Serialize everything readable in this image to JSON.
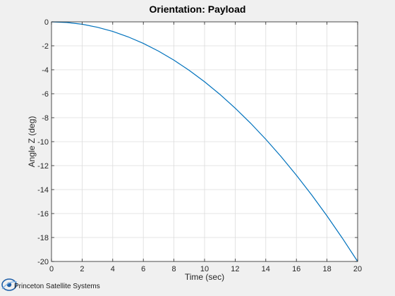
{
  "chart_data": {
    "type": "line",
    "title": "Orientation: Payload",
    "xlabel": "Time (sec)",
    "ylabel": "Angle Z (deg)",
    "xlim": [
      0,
      20
    ],
    "ylim": [
      -20,
      0
    ],
    "xticks": [
      0,
      2,
      4,
      6,
      8,
      10,
      12,
      14,
      16,
      18,
      20
    ],
    "yticks": [
      0,
      -2,
      -4,
      -6,
      -8,
      -10,
      -12,
      -14,
      -16,
      -18,
      -20
    ],
    "grid": true,
    "series": [
      {
        "color": "#0072bd",
        "x": [
          0,
          1,
          2,
          3,
          4,
          5,
          6,
          7,
          8,
          9,
          10,
          11,
          12,
          13,
          14,
          15,
          16,
          17,
          18,
          19,
          20
        ],
        "y": [
          0,
          -0.05,
          -0.2,
          -0.45,
          -0.8,
          -1.25,
          -1.8,
          -2.45,
          -3.2,
          -4.05,
          -5.0,
          -6.05,
          -7.2,
          -8.45,
          -9.8,
          -11.25,
          -12.8,
          -14.45,
          -16.2,
          -18.05,
          -20.0
        ]
      }
    ]
  },
  "footer": {
    "logo_text": "Princeton Satellite Systems",
    "logo_icon": "satellite-orbit-icon",
    "logo_color": "#1f5fa8"
  }
}
